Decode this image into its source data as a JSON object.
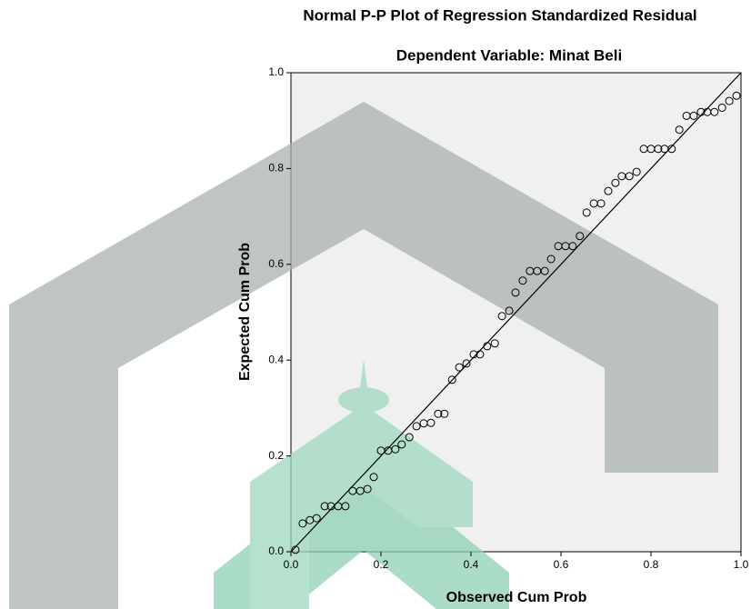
{
  "chart_data": {
    "type": "scatter",
    "title": "Normal P-P Plot of Regression Standardized Residual",
    "subtitle": "Dependent Variable: Minat Beli",
    "x_label": "Observed Cum Prob",
    "y_label": "Expected Cum Prob",
    "marker_color": "#000000",
    "background": "#f0f0f0",
    "x": [
      0.01,
      0.026,
      0.042,
      0.057,
      0.075,
      0.089,
      0.105,
      0.121,
      0.137,
      0.154,
      0.17,
      0.184,
      0.2,
      0.216,
      0.232,
      0.246,
      0.263,
      0.279,
      0.295,
      0.311,
      0.327,
      0.341,
      0.358,
      0.374,
      0.39,
      0.406,
      0.42,
      0.436,
      0.453,
      0.469,
      0.485,
      0.499,
      0.515,
      0.531,
      0.547,
      0.564,
      0.578,
      0.594,
      0.61,
      0.626,
      0.642,
      0.657,
      0.673,
      0.689,
      0.705,
      0.721,
      0.735,
      0.752,
      0.768,
      0.784,
      0.8,
      0.816,
      0.83,
      0.846,
      0.863,
      0.879,
      0.895,
      0.911,
      0.925,
      0.941,
      0.958,
      0.974,
      0.99
    ],
    "values": [
      0.004,
      0.059,
      0.066,
      0.07,
      0.095,
      0.095,
      0.095,
      0.095,
      0.127,
      0.127,
      0.131,
      0.156,
      0.211,
      0.211,
      0.214,
      0.224,
      0.239,
      0.262,
      0.268,
      0.269,
      0.288,
      0.288,
      0.359,
      0.385,
      0.393,
      0.412,
      0.412,
      0.429,
      0.435,
      0.492,
      0.503,
      0.541,
      0.566,
      0.586,
      0.586,
      0.586,
      0.611,
      0.638,
      0.638,
      0.638,
      0.659,
      0.708,
      0.727,
      0.727,
      0.753,
      0.77,
      0.784,
      0.784,
      0.793,
      0.841,
      0.841,
      0.841,
      0.841,
      0.841,
      0.881,
      0.91,
      0.91,
      0.918,
      0.918,
      0.918,
      0.927,
      0.941,
      0.952
    ],
    "xlim": [
      0,
      1
    ],
    "ylim": [
      0,
      1
    ],
    "xticks": [
      {
        "value": 0,
        "label": "0.0"
      },
      {
        "value": 0.2,
        "label": "0.2"
      },
      {
        "value": 0.4,
        "label": "0.4"
      },
      {
        "value": 0.6,
        "label": "0.6"
      },
      {
        "value": 0.8,
        "label": "0.8"
      },
      {
        "value": 1,
        "label": "1.0"
      }
    ],
    "yticks": [
      {
        "value": 0,
        "label": "0.0"
      },
      {
        "value": 0.2,
        "label": "0.2"
      },
      {
        "value": 0.4,
        "label": "0.4"
      },
      {
        "value": 0.6,
        "label": "0.6"
      },
      {
        "value": 0.8,
        "label": "0.8"
      },
      {
        "value": 1,
        "label": "1.0"
      }
    ]
  }
}
